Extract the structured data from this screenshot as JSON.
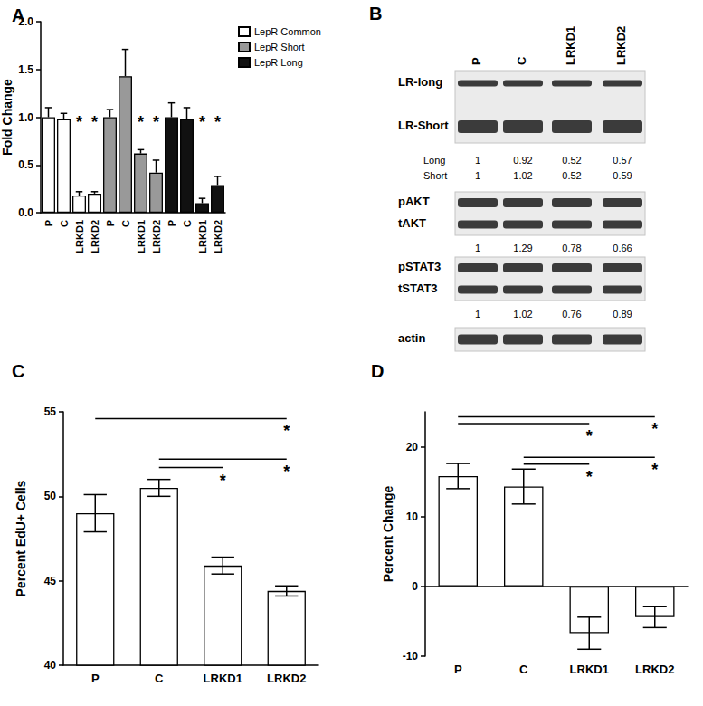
{
  "chart_data": [
    {
      "type": "bar",
      "title": "A",
      "categories": [
        "P",
        "C",
        "LRKD1",
        "LRKD2",
        "P",
        "C",
        "LRKD1",
        "LRKD2",
        "P",
        "C",
        "LRKD1",
        "LRKD2"
      ],
      "series": [
        {
          "name": "LepR Common",
          "color": "#ffffff",
          "values": [
            1.0,
            0.98,
            0.18,
            0.2,
            null,
            null,
            null,
            null,
            null,
            null,
            null,
            null
          ],
          "errors_plus": [
            0.1,
            0.06,
            0.04,
            0.02,
            null,
            null,
            null,
            null,
            null,
            null,
            null,
            null
          ]
        },
        {
          "name": "LepR Short",
          "color": "#999999",
          "values": [
            null,
            null,
            null,
            null,
            1.0,
            1.43,
            0.62,
            0.42,
            null,
            null,
            null,
            null
          ],
          "errors_plus": [
            null,
            null,
            null,
            null,
            0.08,
            0.28,
            0.04,
            0.13,
            null,
            null,
            null,
            null
          ]
        },
        {
          "name": "LepR Long",
          "color": "#111111",
          "values": [
            null,
            null,
            null,
            null,
            null,
            null,
            null,
            null,
            1.0,
            0.98,
            0.1,
            0.29
          ],
          "errors_plus": [
            null,
            null,
            null,
            null,
            null,
            null,
            null,
            null,
            0.15,
            0.12,
            0.05,
            0.09
          ]
        }
      ],
      "ylabel": "Fold Change",
      "ylim": [
        0,
        2
      ],
      "yticks": [
        {
          "value": 0,
          "label": "0.0"
        },
        {
          "value": 0.5,
          "label": "0.5"
        },
        {
          "value": 1,
          "label": "1.0"
        },
        {
          "value": 1.5,
          "label": "1.5"
        },
        {
          "value": 2,
          "label": "2.0"
        }
      ],
      "legend": "top-right",
      "annotations": [
        {
          "x": 2,
          "y": 0.95,
          "text": "*"
        },
        {
          "x": 3,
          "y": 0.95,
          "text": "*"
        },
        {
          "x": 6,
          "y": 0.95,
          "text": "*"
        },
        {
          "x": 7,
          "y": 0.95,
          "text": "*"
        },
        {
          "x": 10,
          "y": 0.95,
          "text": "*"
        },
        {
          "x": 11,
          "y": 0.95,
          "text": "*"
        }
      ]
    },
    {
      "type": "bar",
      "title": "C",
      "categories": [
        "P",
        "C",
        "LRKD1",
        "LRKD2"
      ],
      "values": [
        49.0,
        50.5,
        45.9,
        44.4
      ],
      "errors": [
        1.1,
        0.5,
        0.5,
        0.3
      ],
      "color": "#ffffff",
      "ylabel": "Percent EdU+ Cells",
      "ylim": [
        40,
        55
      ],
      "yticks": [
        40,
        45,
        50,
        55
      ],
      "brackets": [
        {
          "from": "P",
          "to": "LRKD2",
          "y": 54.6,
          "text": "*"
        },
        {
          "from": "C",
          "to": "LRKD2",
          "y": 52.2,
          "text": "*"
        },
        {
          "from": "C",
          "to": "LRKD1",
          "y": 51.7,
          "text": "*"
        }
      ]
    },
    {
      "type": "bar",
      "title": "D",
      "categories": [
        "P",
        "C",
        "LRKD1",
        "LRKD2"
      ],
      "values": [
        15.8,
        14.3,
        -6.7,
        -4.4
      ],
      "errors": [
        1.8,
        2.5,
        2.3,
        1.5
      ],
      "color": "#ffffff",
      "ylabel": "Percent Change",
      "ylim": [
        -10,
        25
      ],
      "yticks": [
        -10,
        0,
        10,
        20
      ],
      "brackets": [
        {
          "from": "P",
          "to": "LRKD2",
          "y": 24.3,
          "text": "*"
        },
        {
          "from": "P",
          "to": "LRKD1",
          "y": 23.3,
          "text": "*"
        },
        {
          "from": "C",
          "to": "LRKD2",
          "y": 18.5,
          "text": "*"
        },
        {
          "from": "C",
          "to": "LRKD1",
          "y": 17.5,
          "text": "*"
        }
      ]
    }
  ],
  "blot": {
    "title": "B",
    "lanes": [
      "P",
      "C",
      "LRKD1",
      "LRKD2"
    ],
    "panels": [
      {
        "bands": [
          "LR-long",
          "LR-Short"
        ],
        "quantification": [
          {
            "label": "Long",
            "values": [
              1,
              0.92,
              0.52,
              0.57
            ]
          },
          {
            "label": "Short",
            "values": [
              1,
              1.02,
              0.52,
              0.59
            ]
          }
        ]
      },
      {
        "bands": [
          "pAKT",
          "tAKT"
        ],
        "quantification": [
          {
            "values": [
              1,
              1.29,
              0.78,
              0.66
            ]
          }
        ]
      },
      {
        "bands": [
          "pSTAT3",
          "tSTAT3"
        ],
        "quantification": [
          {
            "values": [
              1,
              1.02,
              0.76,
              0.89
            ]
          }
        ]
      },
      {
        "bands": [
          "actin"
        ],
        "quantification": []
      }
    ]
  }
}
